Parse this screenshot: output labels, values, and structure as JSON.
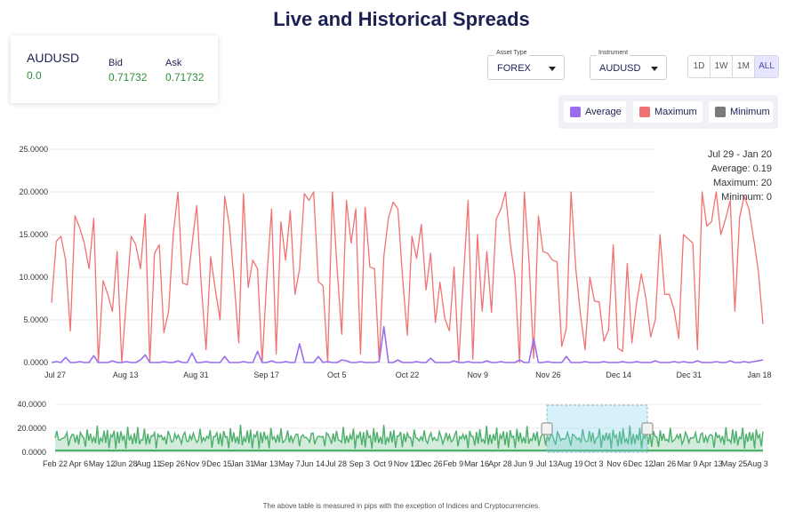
{
  "title": "Live and Historical Spreads",
  "quote": {
    "symbol": "AUDUSD",
    "change": "0.0",
    "bid_label": "Bid",
    "bid": "0.71732",
    "ask_label": "Ask",
    "ask": "0.71732"
  },
  "controls": {
    "asset_type": {
      "label": "Asset Type",
      "value": "FOREX"
    },
    "instrument": {
      "label": "Instrument",
      "value": "AUDUSD"
    },
    "ranges": [
      "1D",
      "1W",
      "1M",
      "ALL"
    ],
    "active_range": "ALL"
  },
  "legend": [
    {
      "name": "Average",
      "color": "#9b6cf0"
    },
    {
      "name": "Maximum",
      "color": "#f07272"
    },
    {
      "name": "Minimum",
      "color": "#7a7a7a"
    }
  ],
  "summary": {
    "range": "Jul 29 - Jan 20",
    "average": "Average: 0.19",
    "maximum": "Maximum: 20",
    "minimum": "Minimum: 0"
  },
  "footer": "The above table is measured in pips with the exception of Indices and Cryptocurrencies.",
  "chart_data": [
    {
      "type": "line",
      "y_ticks": [
        "25.0000",
        "20.0000",
        "15.0000",
        "10.0000",
        "5.0000",
        "0.0000"
      ],
      "ylim": [
        0,
        25
      ],
      "x_ticks": [
        "Jul 27",
        "Aug 13",
        "Aug 31",
        "Sep 17",
        "Oct 5",
        "Oct 22",
        "Nov 9",
        "Nov 26",
        "Dec 14",
        "Dec 31",
        "Jan 18"
      ],
      "series": [
        {
          "name": "Maximum",
          "color": "#f07272",
          "values": [
            7,
            14.2,
            14.8,
            12,
            3.7,
            17.2,
            15.8,
            14,
            11,
            16.9,
            0,
            9.6,
            8,
            6,
            13,
            0,
            7.5,
            14.8,
            13.8,
            11,
            17.4,
            0,
            12.8,
            13.8,
            3.5,
            6,
            15,
            20,
            9.3,
            9.1,
            13.8,
            18.4,
            9,
            1.5,
            12.4,
            8.5,
            5,
            19.5,
            16,
            9.5,
            2.3,
            19.8,
            8.8,
            12,
            11,
            0,
            10,
            18,
            1,
            16.5,
            12,
            17.8,
            8,
            11,
            19.8,
            19,
            20,
            9.5,
            9,
            0,
            20,
            11,
            3.3,
            19,
            14,
            18,
            1,
            18.2,
            11.2,
            11,
            0.2,
            12.5,
            17,
            18.8,
            18,
            10,
            3.2,
            14.8,
            12.2,
            16.2,
            8.5,
            12.8,
            4.7,
            9.4,
            5.2,
            3.7,
            11.2,
            0,
            10,
            19,
            0.4,
            15,
            6,
            13,
            5.9,
            16.8,
            18,
            20,
            14,
            10,
            0,
            20,
            12.1,
            0.5,
            17.2,
            13,
            12.8,
            12,
            11.8,
            1.9,
            4,
            20,
            11,
            5.7,
            1.5,
            10,
            7.2,
            7.1,
            2.5,
            3.8,
            13.8,
            1.7,
            1.3,
            11.6,
            2.3,
            7,
            10.4,
            7.5,
            3,
            5,
            15,
            8,
            8,
            6.2,
            2.8,
            15,
            14.5,
            14,
            1.5,
            20,
            16,
            16.5,
            20,
            15,
            16.8,
            19,
            6,
            17,
            19.5,
            18,
            14.5,
            10.8,
            4.5
          ]
        },
        {
          "name": "Average",
          "color": "#9b6cf0",
          "values": [
            0,
            0.1,
            0,
            0.6,
            0,
            0,
            0.1,
            0,
            0,
            0.8,
            0,
            0,
            0,
            0.2,
            0,
            0,
            0.1,
            0,
            0,
            0.3,
            0.9,
            0,
            0,
            0,
            0.1,
            0,
            0,
            0.2,
            0,
            0,
            1.1,
            0,
            0,
            0.1,
            0,
            0,
            0,
            0.7,
            0,
            0,
            0,
            0.1,
            0,
            0,
            1.3,
            0,
            0,
            0.2,
            0,
            0,
            0.1,
            0,
            0,
            2.2,
            0,
            0,
            0,
            0.7,
            0,
            0.1,
            0,
            0,
            0.3,
            0.2,
            0,
            0,
            0.1,
            0,
            0,
            0,
            0.1,
            4.2,
            0,
            0,
            0.3,
            0,
            0,
            0,
            0.1,
            0,
            0,
            0.5,
            0,
            0,
            0,
            0,
            0.2,
            0,
            0,
            0.1,
            0,
            0,
            0,
            0.2,
            0,
            0,
            0.1,
            0,
            0,
            0,
            0.3,
            0,
            0,
            2.8,
            0,
            0,
            0.1,
            0,
            0,
            0,
            0.7,
            0,
            0,
            0,
            0.1,
            0,
            0,
            0,
            0.1,
            0,
            0,
            0,
            0.1,
            0,
            0,
            0.1,
            0,
            0,
            0,
            0.2,
            0,
            0,
            0,
            0.1,
            0,
            0.1,
            0,
            0,
            0.2,
            0,
            0,
            0,
            0.1,
            0,
            0,
            0.2,
            0,
            0,
            0.1,
            0,
            0.1,
            0.2,
            0.3
          ]
        }
      ]
    },
    {
      "type": "area",
      "name": "navigator",
      "y_ticks": [
        "40.0000",
        "20.0000",
        "0.0000"
      ],
      "ylim": [
        0,
        40
      ],
      "x_ticks": [
        "Feb 22",
        "Apr 6",
        "May 12",
        "Jun 28",
        "Aug 11",
        "Sep 26",
        "Nov 9",
        "Dec 15",
        "Jan 31",
        "Mar 13",
        "May 7",
        "Jun 14",
        "Jul 28",
        "Sep 3",
        "Oct 9",
        "Nov 12",
        "Dec 26",
        "Feb 9",
        "Mar 16",
        "Apr 28",
        "Jun 9",
        "Jul 13",
        "Aug 19",
        "Oct 3",
        "Nov 6",
        "Dec 12",
        "Jan 26",
        "Mar 9",
        "Apr 13",
        "May 25",
        "Aug 3"
      ],
      "selected_range": [
        "Jul 13",
        "Jan 26"
      ]
    }
  ]
}
